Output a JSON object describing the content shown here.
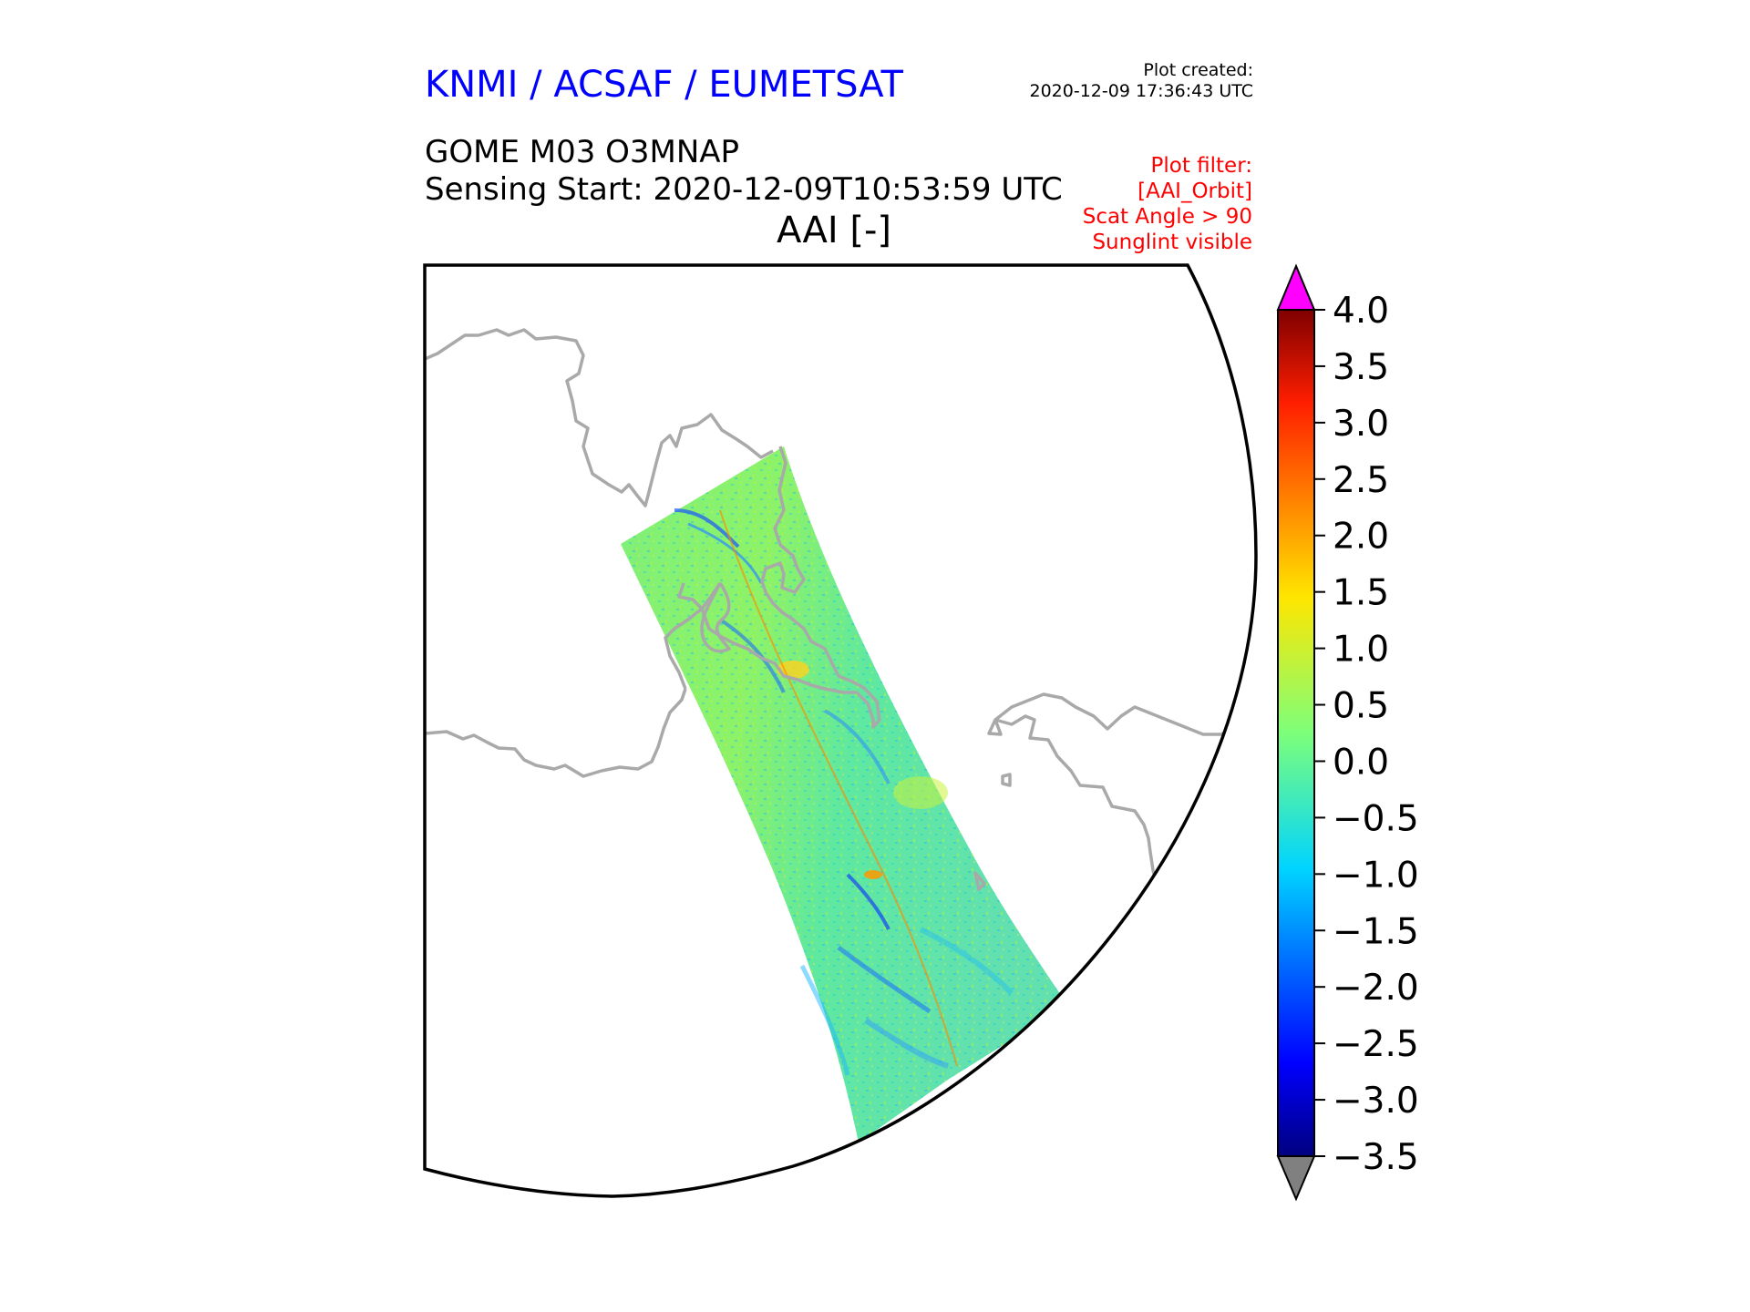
{
  "header": {
    "organisation": "KNMI / ACSAF / EUMETSAT",
    "organisation_color": "#0000ff",
    "plot_created_label": "Plot created:",
    "plot_created_time": "2020-12-09 17:36:43 UTC"
  },
  "product": {
    "title": "GOME M03 O3MNAP",
    "sensing_start": "Sensing Start: 2020-12-09T10:53:59 UTC",
    "variable": "AAI [-]"
  },
  "plot_filter": {
    "color": "#ff0000",
    "lines": [
      "Plot filter:",
      "[AAI_Orbit]",
      "Scat Angle > 90",
      "Sunglint visible"
    ]
  },
  "colorbar": {
    "min": -3.5,
    "max": 4.0,
    "ticks": [
      "4.0",
      "3.5",
      "3.0",
      "2.5",
      "2.0",
      "1.5",
      "1.0",
      "0.5",
      "0.0",
      "−0.5",
      "−1.0",
      "−1.5",
      "−2.0",
      "−2.5",
      "−3.0",
      "−3.5"
    ],
    "over_color": "#ff00ff",
    "under_color": "#808080",
    "colormap": "jet"
  },
  "map": {
    "coastline_color": "#a9a9a9",
    "swath_mean_value": 0.0
  }
}
